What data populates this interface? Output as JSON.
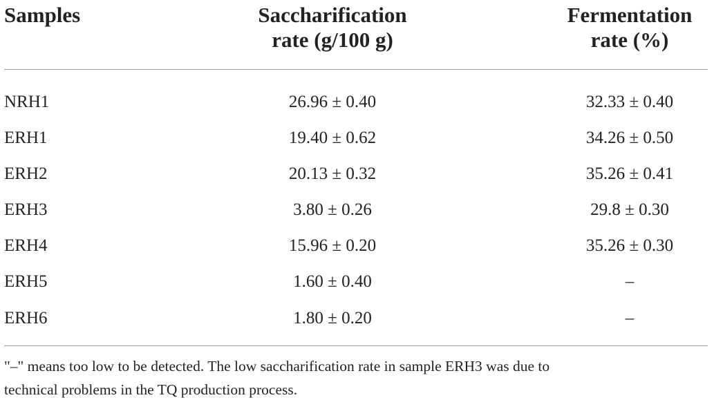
{
  "table": {
    "headers": {
      "samples": "Samples",
      "saccharification_line1": "Saccharification",
      "saccharification_line2": "rate (g/100 g)",
      "fermentation_line1": "Fermentation",
      "fermentation_line2": "rate (%)"
    },
    "rows": [
      {
        "sample": "NRH1",
        "saccharification": "26.96 ± 0.40",
        "fermentation": "32.33 ± 0.40"
      },
      {
        "sample": "ERH1",
        "saccharification": "19.40 ± 0.62",
        "fermentation": "34.26 ± 0.50"
      },
      {
        "sample": "ERH2",
        "saccharification": "20.13 ± 0.32",
        "fermentation": "35.26 ± 0.41"
      },
      {
        "sample": "ERH3",
        "saccharification": "3.80 ± 0.26",
        "fermentation": "29.8 ± 0.30"
      },
      {
        "sample": "ERH4",
        "saccharification": "15.96 ± 0.20",
        "fermentation": "35.26 ± 0.30"
      },
      {
        "sample": "ERH5",
        "saccharification": "1.60 ± 0.40",
        "fermentation": "–"
      },
      {
        "sample": "ERH6",
        "saccharification": "1.80 ± 0.20",
        "fermentation": "–"
      }
    ]
  },
  "footnote": {
    "line1": "\"–\" means too low to be detected. The low saccharification rate in sample ERH3 was due to",
    "line2": "technical problems in the TQ production process."
  }
}
